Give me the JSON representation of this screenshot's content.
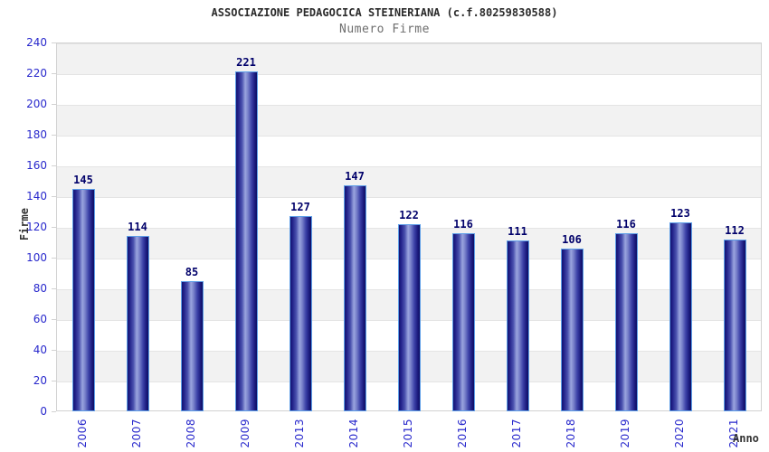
{
  "chart_data": {
    "type": "bar",
    "title": "ASSOCIAZIONE PEDAGOCICA STEINERIANA (c.f.80259830588)",
    "subtitle": "Numero Firme",
    "xlabel": "Anno",
    "ylabel": "Firme",
    "categories": [
      "2006",
      "2007",
      "2008",
      "2009",
      "2013",
      "2014",
      "2015",
      "2016",
      "2017",
      "2018",
      "2019",
      "2020",
      "2021"
    ],
    "values": [
      145,
      114,
      85,
      221,
      127,
      147,
      122,
      116,
      111,
      106,
      116,
      123,
      112
    ],
    "ylim": [
      0,
      240
    ],
    "ytick_step": 20,
    "grid": "horizontal gridlines every 20 units with alternating gray/white bands",
    "legend_position": "none",
    "value_labels": "above each bar",
    "xtick_rotation": "vertical (reading bottom to top)",
    "colors": {
      "bar_edge": "#5e9fe8",
      "bar_gradient_dark": "#131370",
      "bar_gradient_light": "#9aa4de",
      "value_label": "#00006a",
      "tick_label": "#2828cc",
      "band_gray": "#f2f2f2",
      "band_white": "#ffffff",
      "gridline": "#e4e4e4",
      "plot_border": "#d2d2d2",
      "title": "#2b2b2b",
      "subtitle": "#6e6e6e",
      "axis_title": "#333333",
      "background": "#ffffff"
    }
  }
}
